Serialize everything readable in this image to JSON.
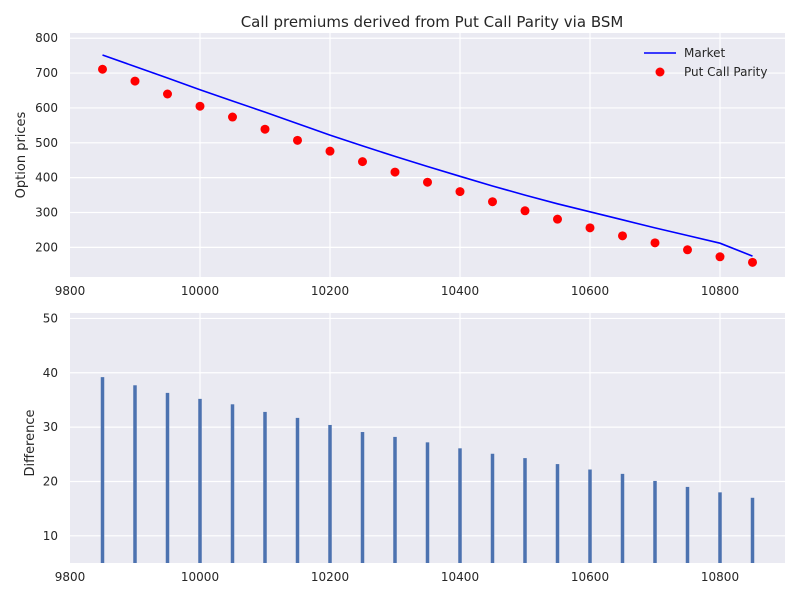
{
  "chart_data": [
    {
      "type": "line+scatter",
      "title": "Call premiums derived from Put Call Parity via BSM",
      "xlabel": "",
      "ylabel": "Option prices",
      "xlim": [
        9800,
        10900
      ],
      "ylim": [
        115,
        815
      ],
      "xticks": [
        9800,
        10000,
        10200,
        10400,
        10600,
        10800
      ],
      "yticks": [
        200,
        300,
        400,
        500,
        600,
        700,
        800
      ],
      "grid": true,
      "legend_position": "top-right",
      "x": [
        9850,
        9900,
        9950,
        10000,
        10050,
        10100,
        10150,
        10200,
        10250,
        10300,
        10350,
        10400,
        10450,
        10500,
        10550,
        10600,
        10650,
        10700,
        10750,
        10800,
        10850
      ],
      "series": [
        {
          "name": "Market",
          "type": "line",
          "color": "#0000ff",
          "values": [
            752,
            719,
            686,
            652,
            620,
            588,
            555,
            522,
            491,
            461,
            432,
            404,
            376,
            350,
            325,
            302,
            279,
            256,
            234,
            212,
            175
          ]
        },
        {
          "name": "Put Call Parity",
          "type": "scatter",
          "color": "#ff0000",
          "values": [
            711,
            677,
            640,
            605,
            574,
            539,
            507,
            476,
            446,
            416,
            387,
            360,
            331,
            305,
            281,
            256,
            233,
            213,
            193,
            173,
            157
          ]
        }
      ]
    },
    {
      "type": "bar",
      "title": "",
      "xlabel": "",
      "ylabel": "Difference",
      "xlim": [
        9800,
        10900
      ],
      "ylim": [
        5,
        51
      ],
      "xticks": [
        9800,
        10000,
        10200,
        10400,
        10600,
        10800
      ],
      "yticks": [
        10,
        20,
        30,
        40,
        50
      ],
      "grid": true,
      "bar_color": "#4c72b0",
      "x": [
        9850,
        9900,
        9950,
        10000,
        10050,
        10100,
        10150,
        10200,
        10250,
        10300,
        10350,
        10400,
        10450,
        10500,
        10550,
        10600,
        10650,
        10700,
        10750,
        10800,
        10850
      ],
      "values": [
        39.2,
        37.7,
        36.3,
        35.2,
        34.2,
        32.8,
        31.7,
        30.4,
        29.1,
        28.2,
        27.2,
        26.1,
        25.1,
        24.3,
        23.2,
        22.2,
        21.4,
        20.1,
        19.0,
        18.0,
        17.0
      ]
    }
  ]
}
